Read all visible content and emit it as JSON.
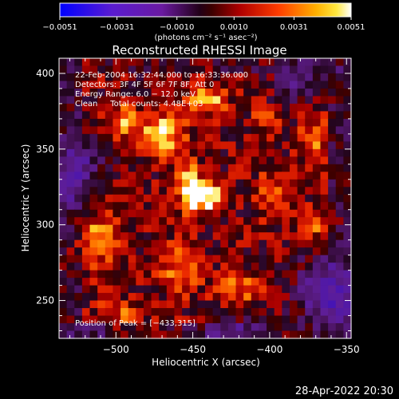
{
  "chart_data": {
    "type": "heatmap",
    "title": "Reconstructed RHESSI Image",
    "xlabel": "Heliocentric X (arcsec)",
    "ylabel": "Heliocentric Y (arcsec)",
    "xlim": [
      -537,
      -347
    ],
    "ylim": [
      225,
      410
    ],
    "x_ticks": [
      -500,
      -450,
      -400,
      -350
    ],
    "x_tick_labels": [
      "−500",
      "−450",
      "−400",
      "−350"
    ],
    "y_ticks": [
      250,
      300,
      350,
      400
    ],
    "y_tick_labels": [
      "250",
      "300",
      "350",
      "400"
    ],
    "colorbar": {
      "range": [
        -0.0051,
        0.0051
      ],
      "ticks": [
        -0.0051,
        -0.0031,
        -0.001,
        0.001,
        0.0031,
        0.0051
      ],
      "tick_labels": [
        "−0.0051",
        "−0.0031",
        "−0.0010",
        "0.0010",
        "0.0031",
        "0.0051"
      ],
      "units": "(photons cm⁻² s⁻¹ asec⁻²)",
      "colors": [
        "#0000ff",
        "#7c1fb4",
        "#3a0a5a",
        "#b00000",
        "#ff5a00",
        "#ffe43a",
        "#ffffff"
      ]
    },
    "annotations": [
      "22‑Feb‑2004 16:32:44.000 to 16:33:36.000",
      "Detectors: 3F 4F 5F 6F 7F 8F, Att 0",
      "Energy Range: 6.0 − 12.0 keV",
      "Clean     Total counts: 4.48E+03"
    ],
    "peak_label": "Position of Peak = [−433,315]",
    "peak_position": [
      -433,
      315
    ],
    "grid_size": [
      38,
      37
    ],
    "bright_sources": [
      {
        "x": -440,
        "y": 318,
        "amp": 1.0,
        "sx": 8,
        "sy": 6
      },
      {
        "x": -452,
        "y": 322,
        "amp": 0.95,
        "sx": 5,
        "sy": 12
      },
      {
        "x": -470,
        "y": 360,
        "amp": 0.8,
        "sx": 10,
        "sy": 9
      },
      {
        "x": -440,
        "y": 382,
        "amp": 0.75,
        "sx": 8,
        "sy": 6
      },
      {
        "x": -495,
        "y": 368,
        "amp": 0.6,
        "sx": 8,
        "sy": 8
      },
      {
        "x": -512,
        "y": 292,
        "amp": 0.55,
        "sx": 9,
        "sy": 14
      },
      {
        "x": -458,
        "y": 270,
        "amp": 0.5,
        "sx": 9,
        "sy": 12
      },
      {
        "x": -420,
        "y": 258,
        "amp": 0.45,
        "sx": 10,
        "sy": 8
      },
      {
        "x": -398,
        "y": 320,
        "amp": 0.45,
        "sx": 8,
        "sy": 10
      },
      {
        "x": -372,
        "y": 355,
        "amp": 0.5,
        "sx": 6,
        "sy": 12
      },
      {
        "x": -370,
        "y": 300,
        "amp": 0.4,
        "sx": 8,
        "sy": 8
      },
      {
        "x": -500,
        "y": 240,
        "amp": 0.45,
        "sx": 10,
        "sy": 7
      },
      {
        "x": -402,
        "y": 370,
        "amp": 0.35,
        "sx": 6,
        "sy": 6
      }
    ],
    "dark_regions": [
      {
        "x": -525,
        "y": 335,
        "amp": -0.7,
        "sx": 10,
        "sy": 18
      },
      {
        "x": -362,
        "y": 255,
        "amp": -0.8,
        "sx": 14,
        "sy": 16
      },
      {
        "x": -380,
        "y": 395,
        "amp": -0.5,
        "sx": 12,
        "sy": 10
      },
      {
        "x": -425,
        "y": 230,
        "amp": -0.5,
        "sx": 14,
        "sy": 6
      },
      {
        "x": -510,
        "y": 232,
        "amp": -0.4,
        "sx": 10,
        "sy": 5
      }
    ]
  },
  "footer": {
    "timestamp": "28‑Apr‑2022 20:30"
  }
}
